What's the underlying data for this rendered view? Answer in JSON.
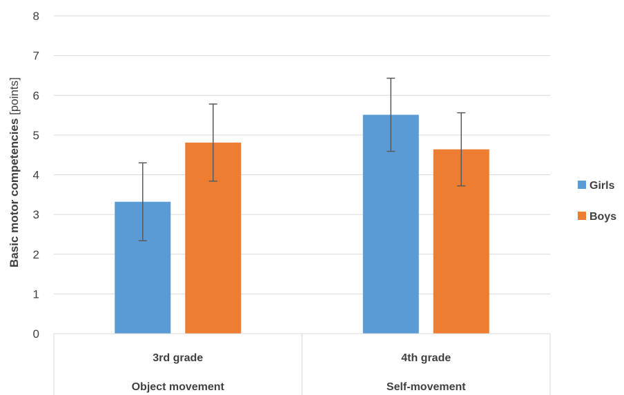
{
  "chart_data": {
    "type": "bar",
    "categories": [
      "3rd grade",
      "4th grade"
    ],
    "group_labels": [
      "Object movement",
      "Self-movement"
    ],
    "series": [
      {
        "name": "Girls",
        "color": "#5B9BD5",
        "values": [
          3.32,
          5.51
        ],
        "error": [
          0.98,
          0.92
        ]
      },
      {
        "name": "Boys",
        "color": "#ED7D31",
        "values": [
          4.81,
          4.64
        ],
        "error": [
          0.97,
          0.92
        ]
      }
    ],
    "ylabel_main": "Basic motor competencies",
    "ylabel_unit": " [points]",
    "ylim": [
      0,
      8
    ],
    "yticks": [
      0,
      1,
      2,
      3,
      4,
      5,
      6,
      7,
      8
    ],
    "grid": true,
    "legend_position": "right"
  }
}
